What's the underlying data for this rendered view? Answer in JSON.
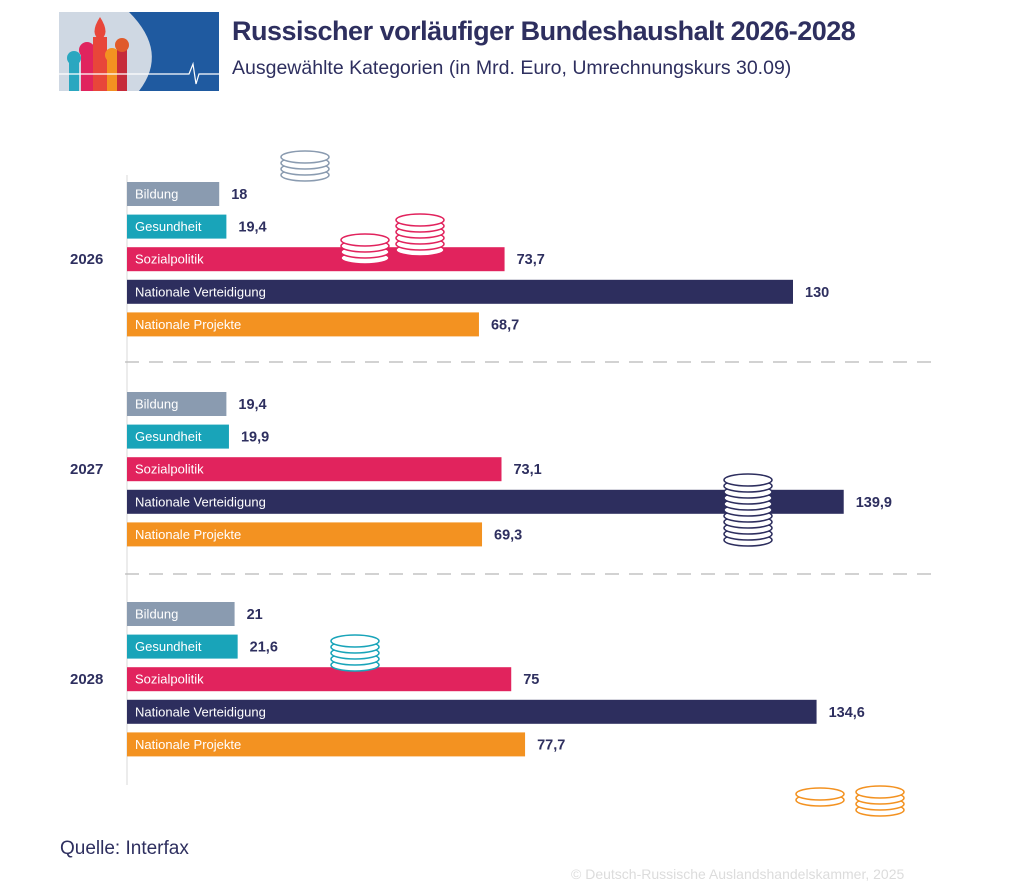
{
  "header": {
    "title": "Russischer vorläufiger Bundeshaushalt 2026-2028",
    "subtitle": "Ausgewählte Kategorien (in Mrd.  Euro, Umrechnungskurs 30.09)"
  },
  "footer": {
    "source": "Quelle: Interfax",
    "copyright": "© Deutsch-Russische Auslandshandelskammer, 2025"
  },
  "chart_data": {
    "type": "bar",
    "orientation": "horizontal",
    "categories": [
      "Bildung",
      "Gesundheit",
      "Sozialpolitik",
      "Nationale Verteidigung",
      "Nationale Projekte"
    ],
    "colors": {
      "Bildung": "#8a9bb0",
      "Gesundheit": "#19a4b9",
      "Sozialpolitik": "#e1235d",
      "Nationale Verteidigung": "#2d2e5e",
      "Nationale Projekte": "#f39221"
    },
    "groups": [
      {
        "year": "2026",
        "values": [
          18,
          19.4,
          73.7,
          130,
          68.7
        ],
        "labels": [
          "18",
          "19,4",
          "73,7",
          "130",
          "68,7"
        ]
      },
      {
        "year": "2027",
        "values": [
          19.4,
          19.9,
          73.1,
          139.9,
          69.3
        ],
        "labels": [
          "19,4",
          "19,9",
          "73,1",
          "139,9",
          "69,3"
        ]
      },
      {
        "year": "2028",
        "values": [
          21,
          21.6,
          75,
          134.6,
          77.7
        ],
        "labels": [
          "21",
          "21,6",
          "75",
          "134,6",
          "77,7"
        ]
      }
    ],
    "grid": false,
    "legend": "none"
  }
}
